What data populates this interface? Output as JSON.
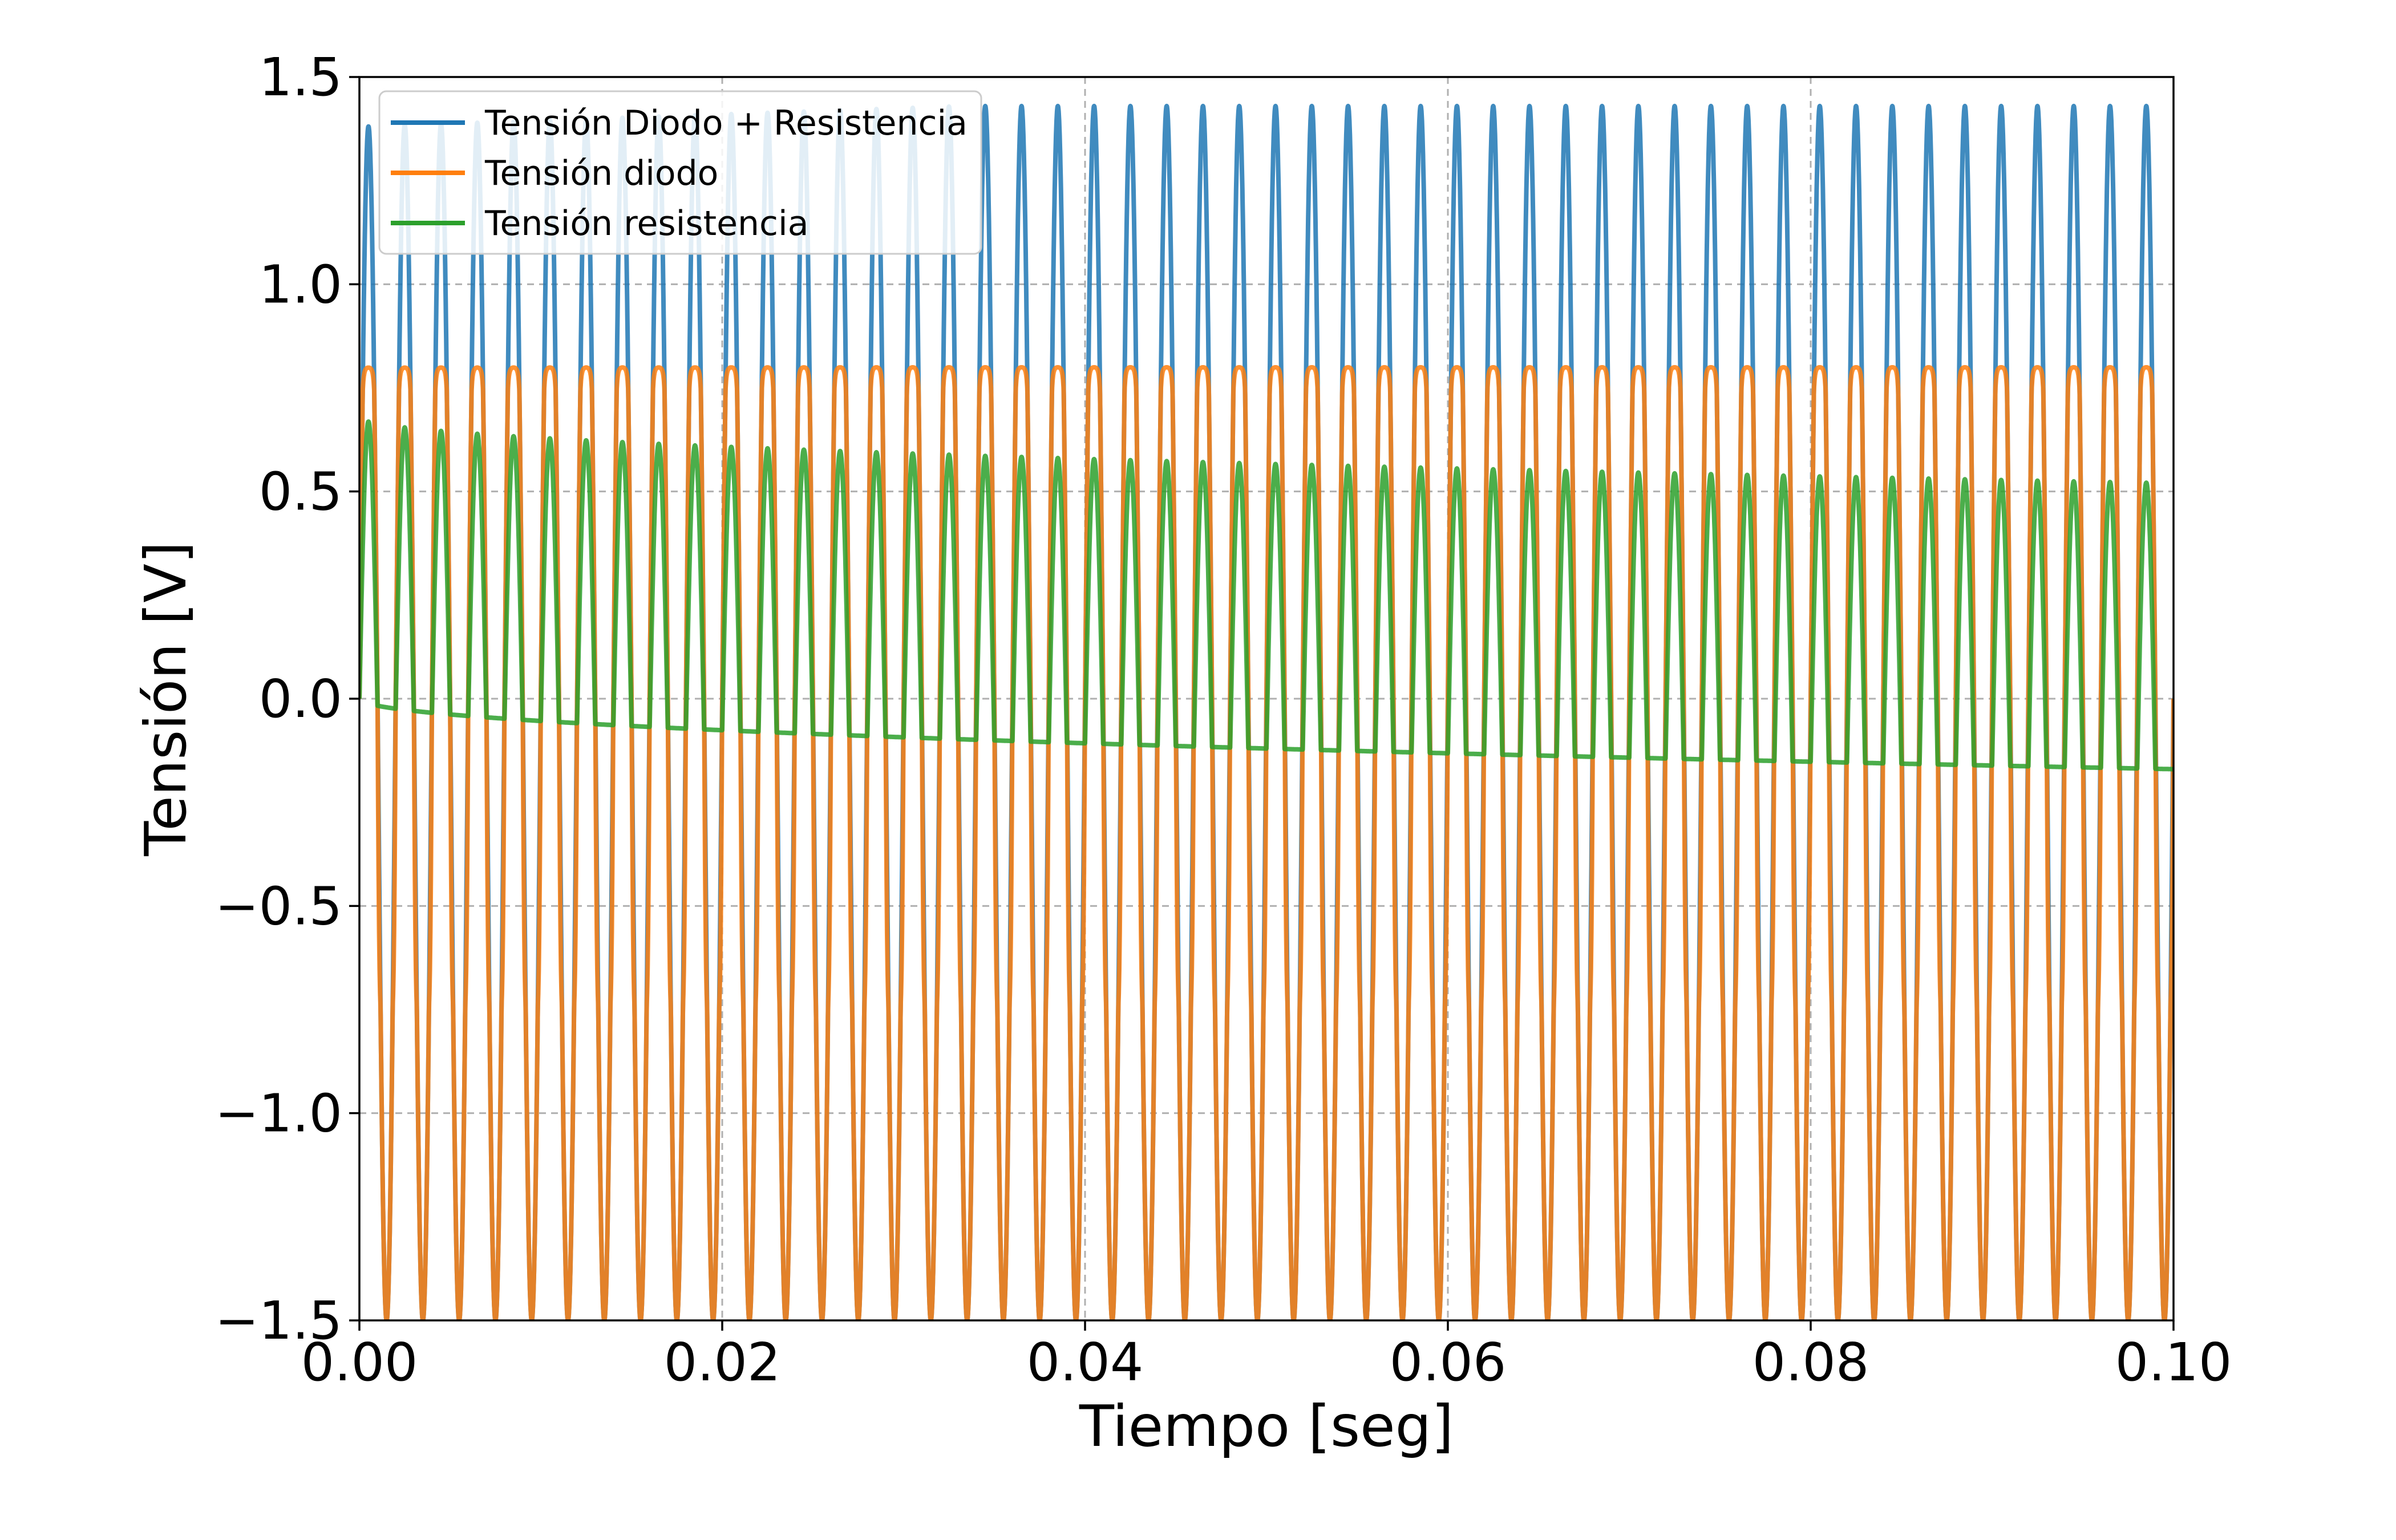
{
  "chart_data": {
    "type": "line",
    "title": "",
    "xlabel": "Tiempo [seg]",
    "ylabel": "Tensión [V]",
    "xlim": [
      0.0,
      0.1
    ],
    "ylim": [
      -1.5,
      1.5
    ],
    "grid": true,
    "legend_position": "top-left",
    "xticks": [
      0.0,
      0.02,
      0.04,
      0.06,
      0.08,
      0.1
    ],
    "xtick_labels": [
      "0.00",
      "0.02",
      "0.04",
      "0.06",
      "0.08",
      "0.10"
    ],
    "yticks": [
      -1.5,
      -1.0,
      -0.5,
      0.0,
      0.5,
      1.0,
      1.5
    ],
    "ytick_labels": [
      "−1.5",
      "−1.0",
      "−0.5",
      "0.0",
      "0.5",
      "1.0",
      "1.5"
    ],
    "series": [
      {
        "name": "Tensión Diodo + Resistencia",
        "color": "#1f77b4",
        "description": "sine, amplitude ~1.5 V, 500 Hz, positive peaks ~1.38 at start rising to ~1.43 by end",
        "frequency_hz": 500,
        "amplitude_v": 1.5,
        "peak_values": [
          1.38,
          1.43
        ]
      },
      {
        "name": "Tensión diodo",
        "color": "#ff7f0e",
        "description": "clipped positive at ~0.74 V, negative follows source down to -1.5 V",
        "frequency_hz": 500,
        "positive_clip_v": 0.74,
        "negative_peak_v": -1.5
      },
      {
        "name": "Tensión resistencia",
        "color": "#2ca02c",
        "description": "positive half-wave pulses with peaks decaying from ~0.68 to ~0.52 V, baseline drifting from 0 to ~-0.17 V",
        "frequency_hz": 500,
        "peak_values": [
          0.68,
          0.52
        ],
        "baseline_values": [
          0.0,
          -0.17
        ]
      }
    ]
  }
}
